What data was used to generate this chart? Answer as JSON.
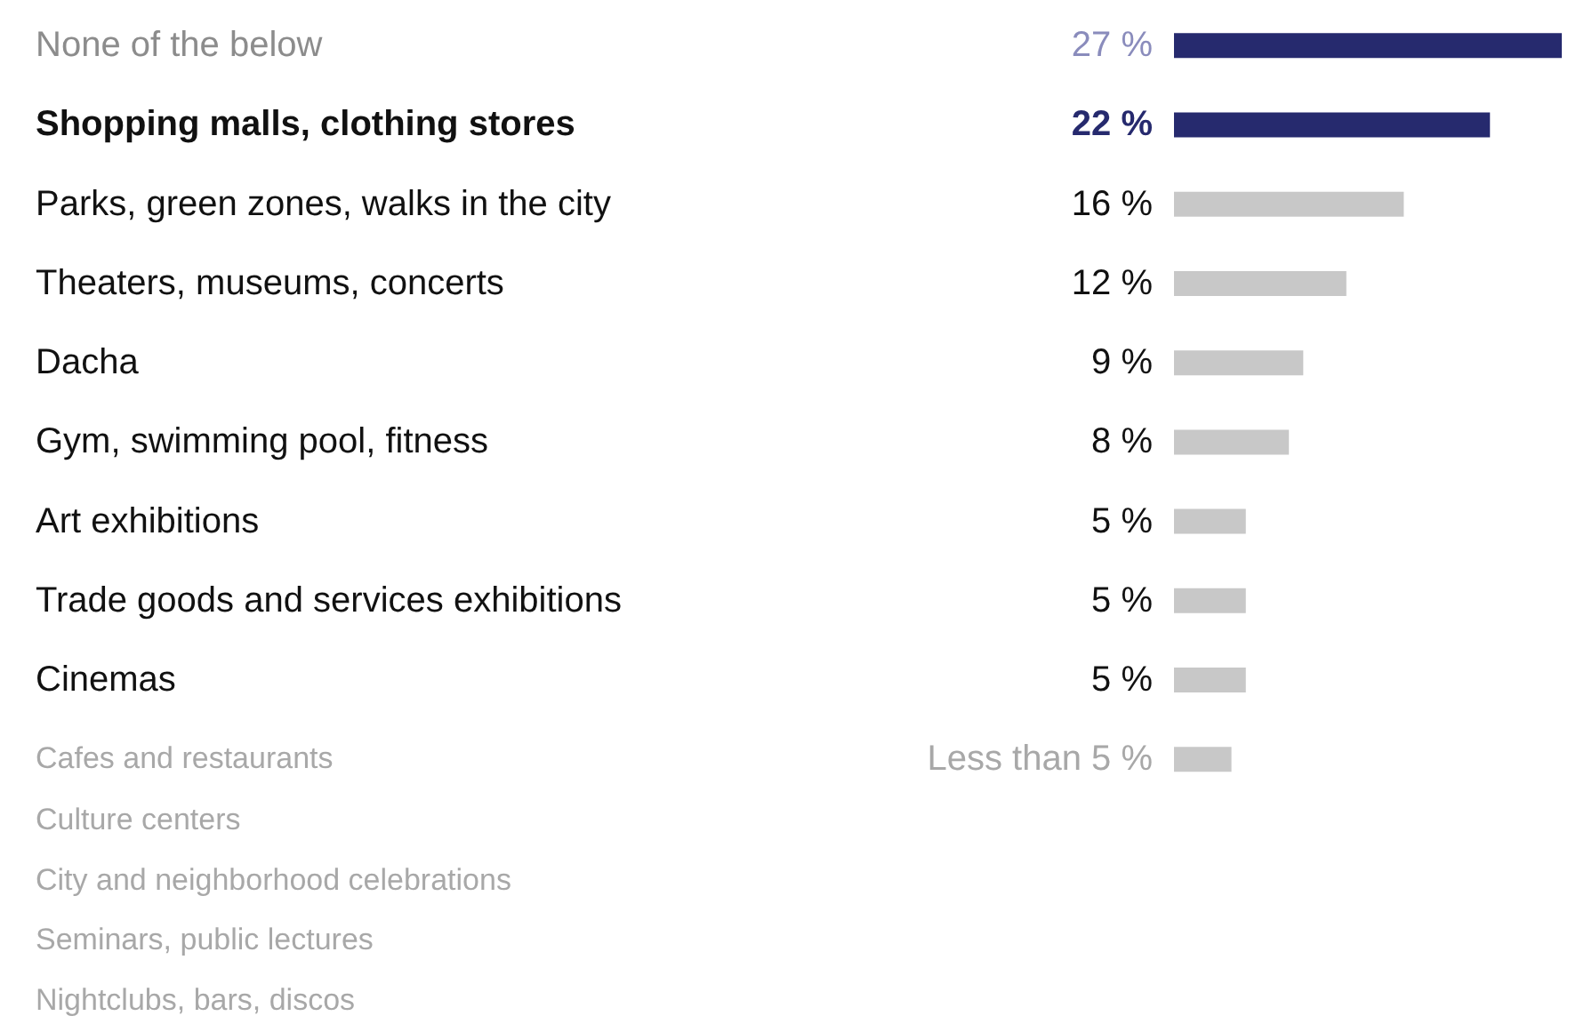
{
  "chart_data": {
    "type": "bar",
    "orientation": "horizontal",
    "categories": [
      "None of the below",
      "Shopping malls, clothing stores",
      "Parks, green zones, walks in the city",
      "Theaters, museums, concerts",
      "Dacha",
      "Gym, swimming pool, fitness",
      "Art exhibitions",
      "Trade goods and services exhibitions",
      "Cinemas",
      "Cafes and restaurants",
      "Culture centers",
      "City and neighborhood celebrations",
      "Seminars, public lectures",
      "Nightclubs, bars, discos"
    ],
    "values": [
      27,
      22,
      16,
      12,
      9,
      8,
      5,
      5,
      5,
      4,
      null,
      null,
      null,
      null
    ],
    "value_labels": [
      "27 %",
      "22 %",
      "16 %",
      "12 %",
      "9 %",
      "8 %",
      "5 %",
      "5 %",
      "5 %",
      "Less than 5 %",
      null,
      null,
      null,
      null
    ],
    "colors": [
      "#262a6e",
      "#262a6e",
      "#c8c8c8",
      "#c8c8c8",
      "#c8c8c8",
      "#c8c8c8",
      "#c8c8c8",
      "#c8c8c8",
      "#c8c8c8",
      "#c8c8c8",
      "#c8c8c8",
      "#c8c8c8",
      "#c8c8c8",
      "#c8c8c8"
    ],
    "legend": false
  }
}
